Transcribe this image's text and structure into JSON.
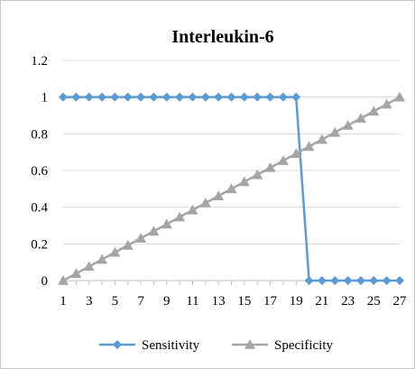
{
  "chart_data": {
    "type": "line",
    "title": "Interleukin-6",
    "xlabel": "",
    "ylabel": "",
    "x": [
      1,
      2,
      3,
      4,
      5,
      6,
      7,
      8,
      9,
      10,
      11,
      12,
      13,
      14,
      15,
      16,
      17,
      18,
      19,
      20,
      21,
      22,
      23,
      24,
      25,
      26,
      27
    ],
    "x_tick_labels": [
      "1",
      "3",
      "5",
      "7",
      "9",
      "11",
      "13",
      "15",
      "17",
      "19",
      "21",
      "23",
      "25",
      "27"
    ],
    "y_tick_labels": [
      "0",
      "0.2",
      "0.4",
      "0.6",
      "0.8",
      "1",
      "1.2"
    ],
    "ylim": [
      0,
      1.2
    ],
    "grid": true,
    "legend_position": "bottom",
    "series": [
      {
        "name": "Sensitivity",
        "color": "#5b9bd5",
        "marker": "diamond",
        "values": [
          1,
          1,
          1,
          1,
          1,
          1,
          1,
          1,
          1,
          1,
          1,
          1,
          1,
          1,
          1,
          1,
          1,
          1,
          1,
          0,
          0,
          0,
          0,
          0,
          0,
          0,
          0
        ]
      },
      {
        "name": "Specificity",
        "color": "#a5a5a5",
        "marker": "triangle",
        "values": [
          0,
          0.0385,
          0.0769,
          0.1154,
          0.1538,
          0.1923,
          0.2308,
          0.2692,
          0.3077,
          0.3462,
          0.3846,
          0.4231,
          0.4615,
          0.5,
          0.5385,
          0.5769,
          0.6154,
          0.6538,
          0.6923,
          0.7308,
          0.7692,
          0.8077,
          0.8462,
          0.8846,
          0.9231,
          0.9615,
          1
        ]
      }
    ]
  }
}
